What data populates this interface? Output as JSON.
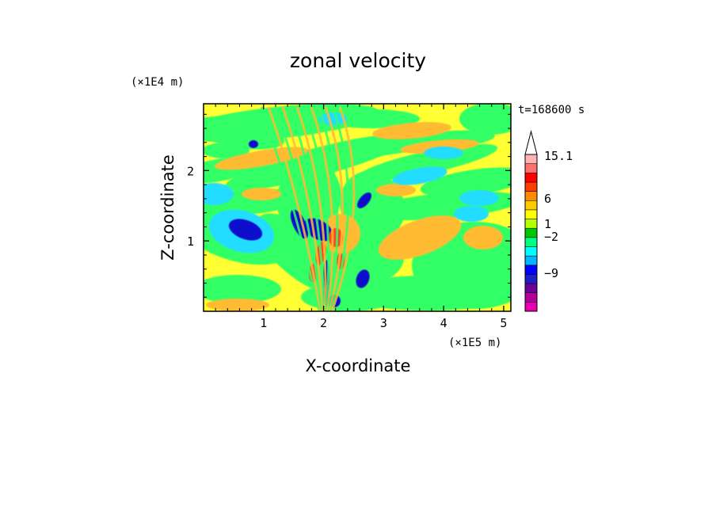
{
  "chart_data": {
    "type": "heatmap",
    "title": "zonal velocity",
    "xlabel": "X-coordinate",
    "ylabel": "Z-coordinate",
    "x_scale_label": "(×1E5 m)",
    "y_scale_label": "(×1E4 m)",
    "time_label": "t=168600 s",
    "xlim": [
      0,
      5.12
    ],
    "ylim": [
      0,
      2.95
    ],
    "x_ticks": [
      1,
      2,
      3,
      4,
      5
    ],
    "y_ticks": [
      1,
      2
    ],
    "colorbar": {
      "label_values": [
        "15.1",
        "6",
        "1",
        "−2",
        "−9"
      ],
      "levels": [
        {
          "color": "#e600b0"
        },
        {
          "color": "#b4009a"
        },
        {
          "color": "#6e0096"
        },
        {
          "color": "#1e1ec8"
        },
        {
          "color": "#0000ff"
        },
        {
          "color": "#00b4ff"
        },
        {
          "color": "#00ffff"
        },
        {
          "color": "#00ff80"
        },
        {
          "color": "#00c800"
        },
        {
          "color": "#b4ff00"
        },
        {
          "color": "#ffff00"
        },
        {
          "color": "#ffc800"
        },
        {
          "color": "#ff8c00"
        },
        {
          "color": "#ff3c00"
        },
        {
          "color": "#ff0000"
        },
        {
          "color": "#ff7070"
        },
        {
          "color": "#ffb4b4"
        }
      ]
    },
    "field_colors": {
      "background": "#ffff33",
      "green": "#33ff66",
      "orange": "#ffbb33",
      "cyan": "#22ddff",
      "blue": "#1111cc",
      "red": "#ff4422"
    }
  }
}
